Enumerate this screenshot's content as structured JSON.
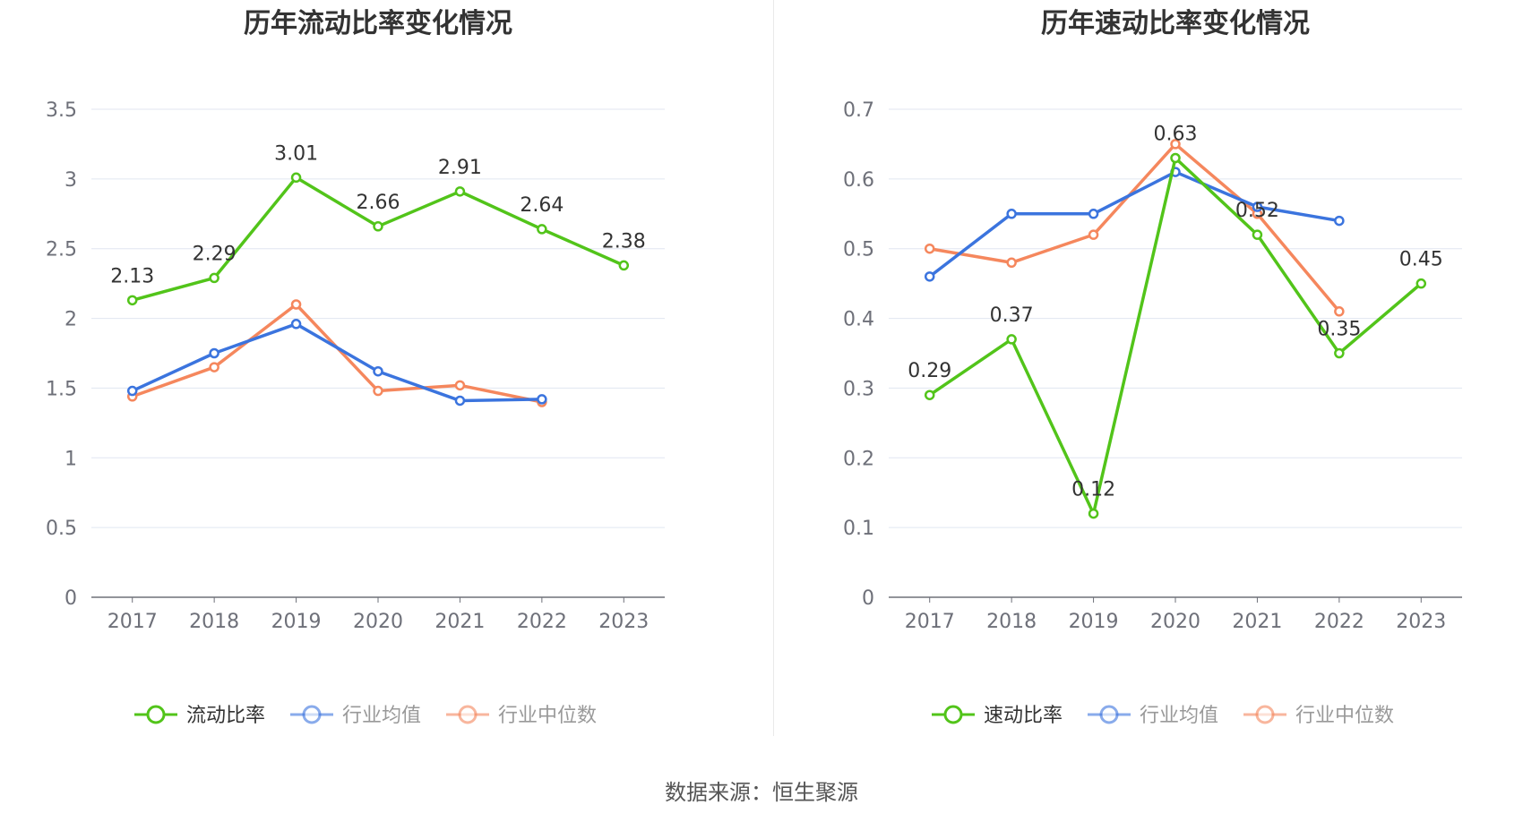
{
  "source_text": "数据来源：恒生聚源",
  "colors": {
    "main": "#52c41a",
    "avg": "#3b74de",
    "median": "#f5875d",
    "grid": "#e0e6f1",
    "axis": "#6e7079"
  },
  "chart_data": [
    {
      "type": "line",
      "title": "历年流动比率变化情况",
      "categories": [
        "2017",
        "2018",
        "2019",
        "2020",
        "2021",
        "2022",
        "2023"
      ],
      "ylim": [
        0,
        3.5
      ],
      "yticks": [
        "0",
        "0.5",
        "1",
        "1.5",
        "2",
        "2.5",
        "3",
        "3.5"
      ],
      "grid": true,
      "legend_position": "bottom",
      "series": [
        {
          "name": "流动比率",
          "color": "#52c41a",
          "values": [
            2.13,
            2.29,
            3.01,
            2.66,
            2.91,
            2.64,
            2.38
          ],
          "labels": [
            "2.13",
            "2.29",
            "3.01",
            "2.66",
            "2.91",
            "2.64",
            "2.38"
          ]
        },
        {
          "name": "行业均值",
          "color": "#3b74de",
          "values": [
            1.48,
            1.75,
            1.96,
            1.62,
            1.41,
            1.42,
            null
          ]
        },
        {
          "name": "行业中位数",
          "color": "#f5875d",
          "values": [
            1.44,
            1.65,
            2.1,
            1.48,
            1.52,
            1.4,
            null
          ]
        }
      ]
    },
    {
      "type": "line",
      "title": "历年速动比率变化情况",
      "categories": [
        "2017",
        "2018",
        "2019",
        "2020",
        "2021",
        "2022",
        "2023"
      ],
      "ylim": [
        0,
        0.7
      ],
      "yticks": [
        "0",
        "0.1",
        "0.2",
        "0.3",
        "0.4",
        "0.5",
        "0.6",
        "0.7"
      ],
      "grid": true,
      "legend_position": "bottom",
      "series": [
        {
          "name": "速动比率",
          "color": "#52c41a",
          "values": [
            0.29,
            0.37,
            0.12,
            0.63,
            0.52,
            0.35,
            0.45
          ],
          "labels": [
            "0.29",
            "0.37",
            "0.12",
            "0.63",
            "0.52",
            "0.35",
            "0.45"
          ]
        },
        {
          "name": "行业均值",
          "color": "#3b74de",
          "values": [
            0.46,
            0.55,
            0.55,
            0.61,
            0.56,
            0.54,
            null
          ]
        },
        {
          "name": "行业中位数",
          "color": "#f5875d",
          "values": [
            0.5,
            0.48,
            0.52,
            0.65,
            0.55,
            0.41,
            null
          ]
        }
      ]
    }
  ]
}
